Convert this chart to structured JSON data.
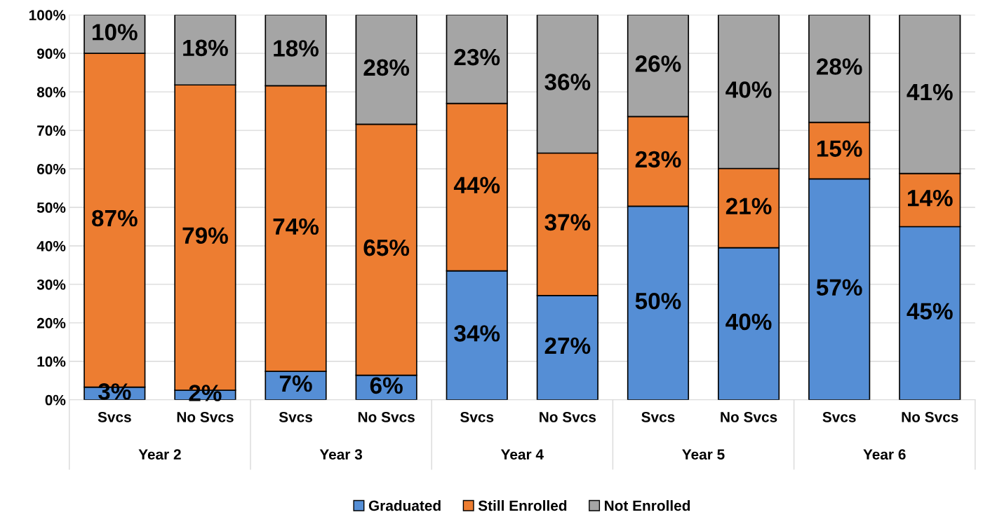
{
  "chart_data": {
    "type": "bar",
    "stacked": true,
    "categories": [
      "Svcs",
      "No Svcs",
      "Svcs",
      "No Svcs",
      "Svcs",
      "No Svcs",
      "Svcs",
      "No Svcs",
      "Svcs",
      "No Svcs"
    ],
    "annotations": [
      "Year 2",
      "Year 3",
      "Year 4",
      "Year 5",
      "Year 6"
    ],
    "series": [
      {
        "name": "Graduated",
        "color": "#558ed5",
        "values": [
          3.3,
          2.5,
          7.4,
          6.4,
          33.5,
          27.1,
          50.3,
          39.5,
          57.4,
          45.0
        ],
        "value_labels": [
          "3%",
          "2%",
          "7%",
          "6%",
          "34%",
          "27%",
          "50%",
          "40%",
          "57%",
          "45%"
        ]
      },
      {
        "name": "Still Enrolled",
        "color": "#ed7d31",
        "values": [
          86.7,
          79.3,
          74.2,
          65.2,
          43.5,
          37.0,
          23.3,
          20.6,
          14.7,
          13.8
        ],
        "value_labels": [
          "87%",
          "79%",
          "74%",
          "65%",
          "44%",
          "37%",
          "23%",
          "21%",
          "15%",
          "14%"
        ]
      },
      {
        "name": "Not Enrolled",
        "color": "#a5a5a5",
        "values": [
          10.0,
          18.2,
          18.4,
          28.4,
          23.0,
          35.9,
          26.4,
          39.9,
          27.9,
          41.2
        ],
        "value_labels": [
          "10%",
          "18%",
          "18%",
          "28%",
          "23%",
          "36%",
          "26%",
          "40%",
          "28%",
          "41%"
        ]
      }
    ],
    "ylim": [
      0,
      100
    ],
    "yticks": [
      {
        "value": 0,
        "label": "0%"
      },
      {
        "value": 10,
        "label": "10%"
      },
      {
        "value": 20,
        "label": "20%"
      },
      {
        "value": 30,
        "label": "30%"
      },
      {
        "value": 40,
        "label": "40%"
      },
      {
        "value": 50,
        "label": "50%"
      },
      {
        "value": 60,
        "label": "60%"
      },
      {
        "value": 70,
        "label": "70%"
      },
      {
        "value": 80,
        "label": "80%"
      },
      {
        "value": 90,
        "label": "90%"
      },
      {
        "value": 100,
        "label": "100%"
      }
    ],
    "grid": "y",
    "legend": "bottom"
  }
}
